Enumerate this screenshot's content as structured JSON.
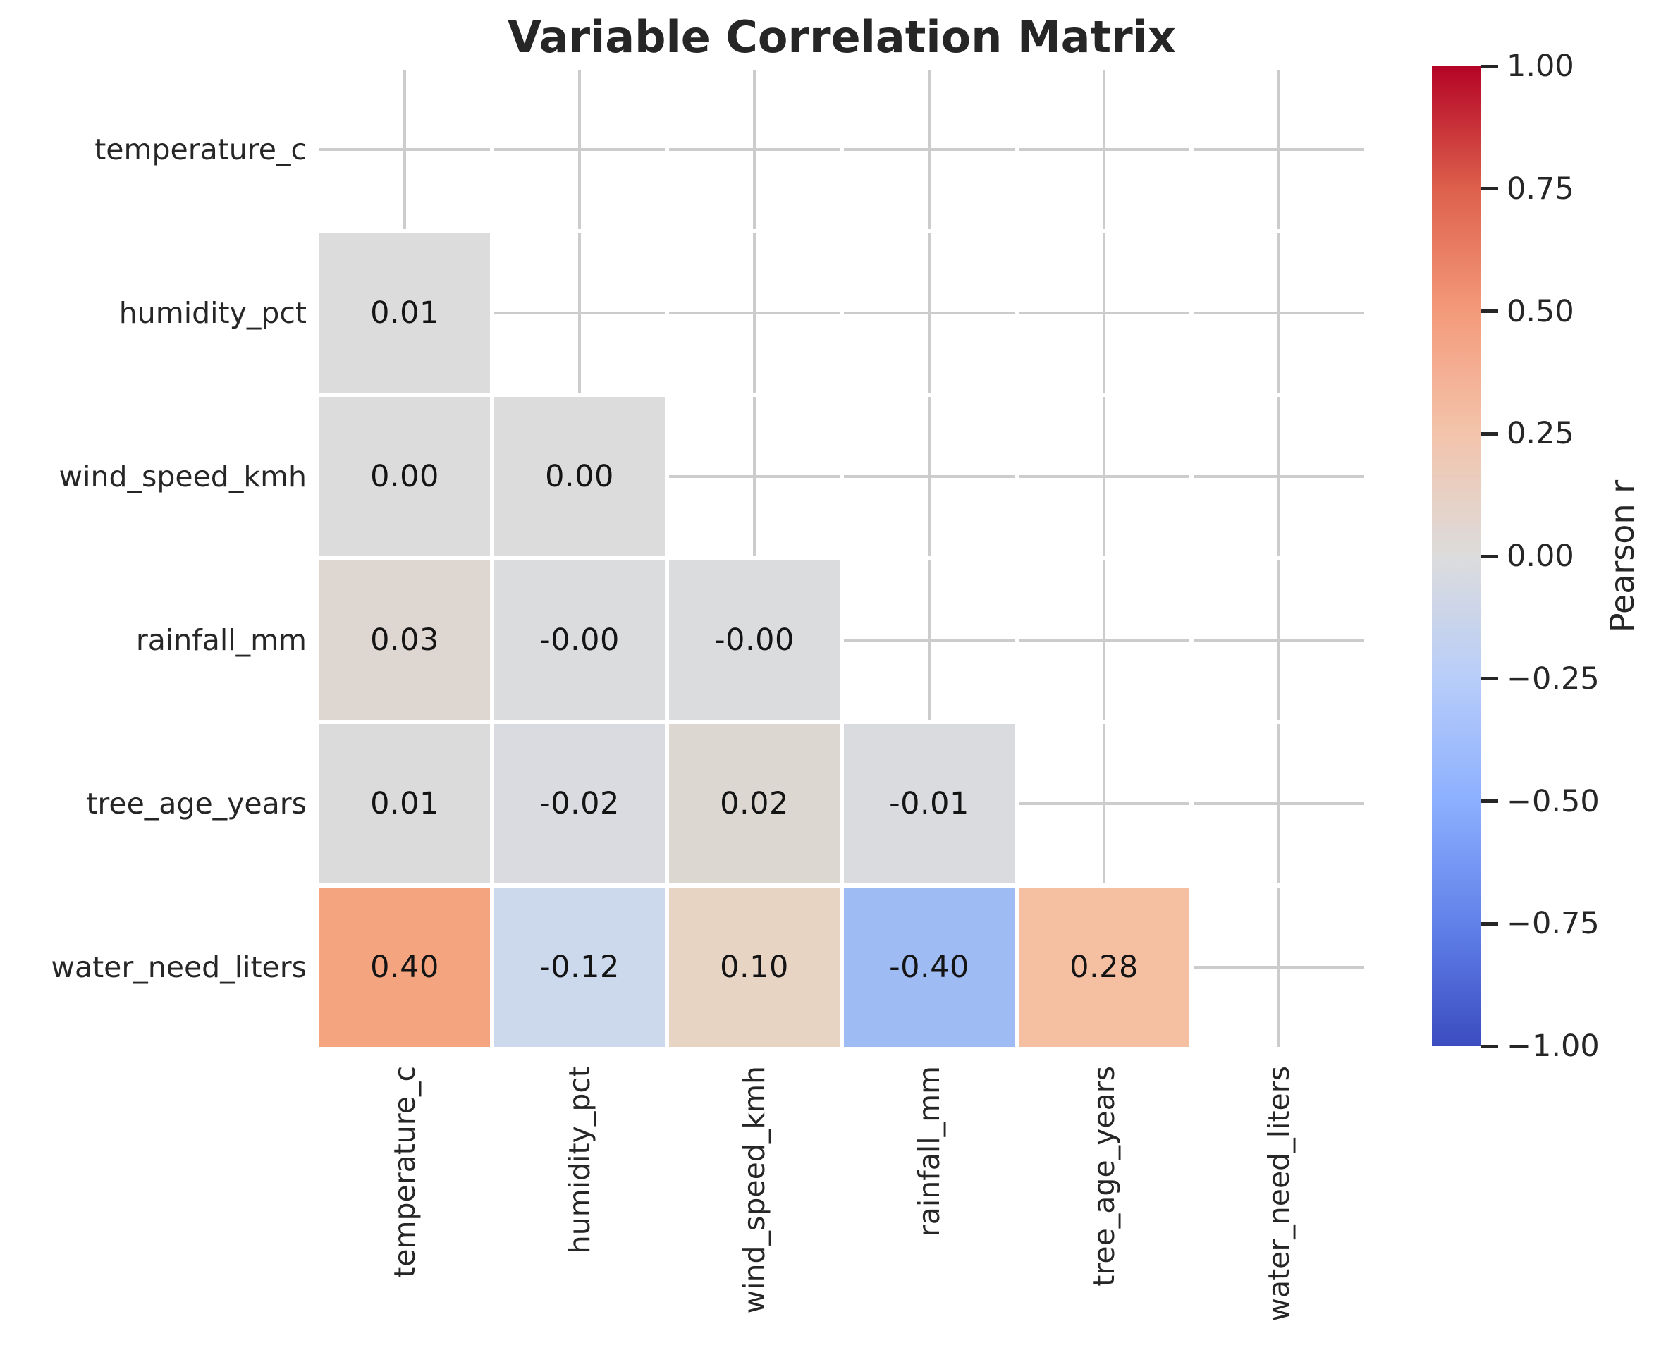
{
  "chart_data": {
    "type": "heatmap",
    "title": "Variable Correlation Matrix",
    "variables": [
      "temperature_c",
      "humidity_pct",
      "wind_speed_kmh",
      "rainfall_mm",
      "tree_age_years",
      "water_need_liters"
    ],
    "mask": "upper triangle and diagonal hidden",
    "grid": true,
    "cells": [
      {
        "i": 1,
        "j": 0,
        "row": "humidity_pct",
        "col": "temperature_c",
        "value": 0.01,
        "label": "0.01",
        "color": "#dddcdc"
      },
      {
        "i": 2,
        "j": 0,
        "row": "wind_speed_kmh",
        "col": "temperature_c",
        "value": 0.0,
        "label": "0.00",
        "color": "#dddcdc"
      },
      {
        "i": 2,
        "j": 1,
        "row": "wind_speed_kmh",
        "col": "humidity_pct",
        "value": 0.0,
        "label": "0.00",
        "color": "#dcdcdd"
      },
      {
        "i": 3,
        "j": 0,
        "row": "rainfall_mm",
        "col": "temperature_c",
        "value": 0.03,
        "label": "0.03",
        "color": "#ded7d1"
      },
      {
        "i": 3,
        "j": 1,
        "row": "rainfall_mm",
        "col": "humidity_pct",
        "value": -0.0,
        "label": "-0.00",
        "color": "#dbdcdd"
      },
      {
        "i": 3,
        "j": 2,
        "row": "rainfall_mm",
        "col": "wind_speed_kmh",
        "value": -0.0,
        "label": "-0.00",
        "color": "#dbdcdd"
      },
      {
        "i": 4,
        "j": 0,
        "row": "tree_age_years",
        "col": "temperature_c",
        "value": 0.01,
        "label": "0.01",
        "color": "#dcdbdc"
      },
      {
        "i": 4,
        "j": 1,
        "row": "tree_age_years",
        "col": "humidity_pct",
        "value": -0.02,
        "label": "-0.02",
        "color": "#d9dbe0"
      },
      {
        "i": 4,
        "j": 2,
        "row": "tree_age_years",
        "col": "wind_speed_kmh",
        "value": 0.02,
        "label": "0.02",
        "color": "#ddd7d2"
      },
      {
        "i": 4,
        "j": 3,
        "row": "tree_age_years",
        "col": "rainfall_mm",
        "value": -0.01,
        "label": "-0.01",
        "color": "#dadbde"
      },
      {
        "i": 5,
        "j": 0,
        "row": "water_need_liters",
        "col": "temperature_c",
        "value": 0.4,
        "label": "0.40",
        "color": "#f4a47e"
      },
      {
        "i": 5,
        "j": 1,
        "row": "water_need_liters",
        "col": "humidity_pct",
        "value": -0.12,
        "label": "-0.12",
        "color": "#ccd9ec"
      },
      {
        "i": 5,
        "j": 2,
        "row": "water_need_liters",
        "col": "wind_speed_kmh",
        "value": 0.1,
        "label": "0.10",
        "color": "#e7d4c2"
      },
      {
        "i": 5,
        "j": 3,
        "row": "water_need_liters",
        "col": "rainfall_mm",
        "value": -0.4,
        "label": "-0.40",
        "color": "#9fbbf4"
      },
      {
        "i": 5,
        "j": 4,
        "row": "water_need_liters",
        "col": "tree_age_years",
        "value": 0.28,
        "label": "0.28",
        "color": "#f5c0a2"
      }
    ],
    "colorbar": {
      "label": "Pearson r",
      "vmin": -1.0,
      "vmax": 1.0,
      "colormap": "coolwarm",
      "position": "right",
      "ticks": [
        {
          "value": 1.0,
          "label": "1.00"
        },
        {
          "value": 0.75,
          "label": "0.75"
        },
        {
          "value": 0.5,
          "label": "0.50"
        },
        {
          "value": 0.25,
          "label": "0.25"
        },
        {
          "value": 0.0,
          "label": "0.00"
        },
        {
          "value": -0.25,
          "label": "−0.25"
        },
        {
          "value": -0.5,
          "label": "−0.50"
        },
        {
          "value": -0.75,
          "label": "−0.75"
        },
        {
          "value": -1.0,
          "label": "−1.00"
        }
      ],
      "gradient_stops": [
        {
          "value": -1.0,
          "color": "#3b4cc0"
        },
        {
          "value": -0.75,
          "color": "#6181e9"
        },
        {
          "value": -0.5,
          "color": "#8caffe"
        },
        {
          "value": -0.25,
          "color": "#b8cdf9"
        },
        {
          "value": 0.0,
          "color": "#dcdcdc"
        },
        {
          "value": 0.25,
          "color": "#f3c4ab"
        },
        {
          "value": 0.5,
          "color": "#f49a7b"
        },
        {
          "value": 0.75,
          "color": "#dd604c"
        },
        {
          "value": 1.0,
          "color": "#b40426"
        }
      ]
    },
    "colors": {
      "background": "#ffffff",
      "gridline": "#cccccc",
      "tick_text": "#262626",
      "annotation_text": "#141414",
      "cell_separator": "#ffffff"
    }
  }
}
